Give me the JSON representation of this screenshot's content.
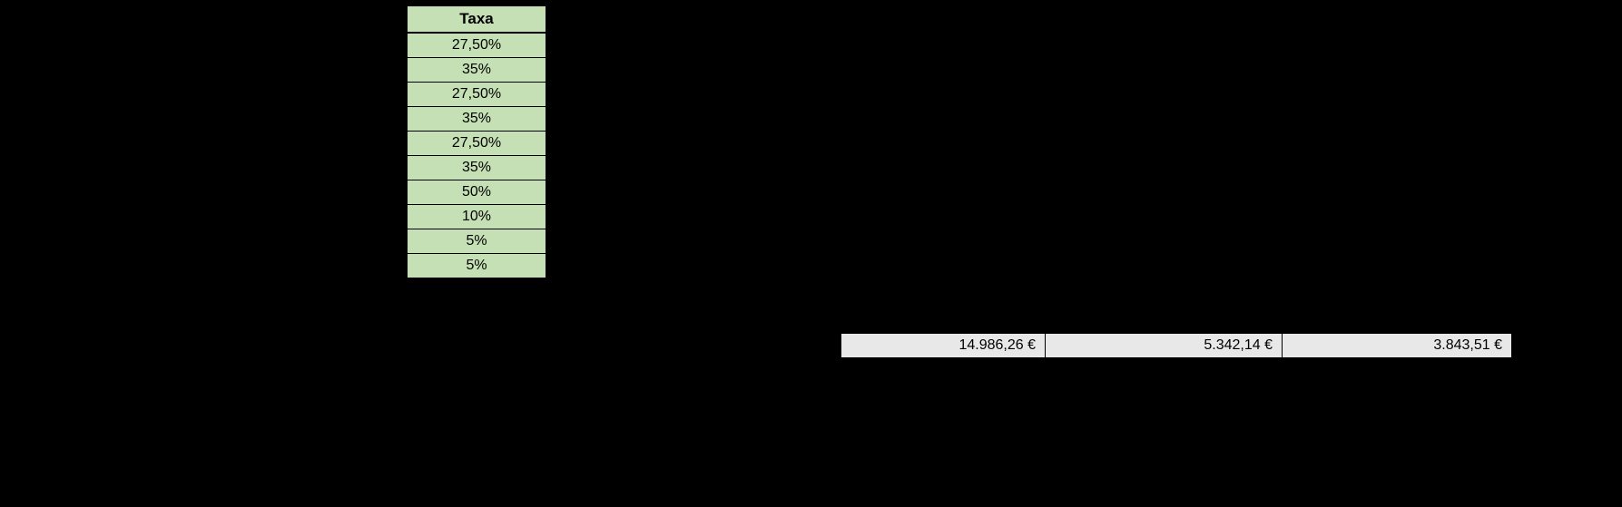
{
  "taxa": {
    "header": "Taxa",
    "header_bg": "#c5e0b4",
    "cell_bg": "#c5e0b4",
    "border_color": "#000000",
    "fontsize_header": 17,
    "fontsize_cell": 16,
    "rows": [
      "27,50%",
      "35%",
      "27,50%",
      "35%",
      "27,50%",
      "35%",
      "50%",
      "10%",
      "5%",
      "5%"
    ]
  },
  "totals": {
    "bg": "#e8e8e8",
    "border_color": "#000000",
    "fontsize": 16,
    "cells": [
      "14.986,26 €",
      "5.342,14 €",
      "3.843,51 €"
    ]
  },
  "page_bg": "#000000"
}
